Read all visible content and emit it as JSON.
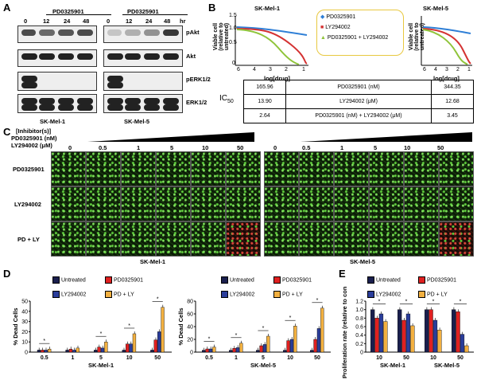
{
  "panels": {
    "A": "A",
    "B": "B",
    "C": "C",
    "D": "D",
    "E": "E"
  },
  "colors": {
    "untreated": "#1a1f4e",
    "pd": "#e02020",
    "ly": "#2a3d9a",
    "pdly": "#f2b040",
    "blue_curve": "#2f7fd6",
    "red_curve": "#d43232",
    "green_curve": "#8fc43a",
    "micro_bg": "#0b1d07"
  },
  "panelA": {
    "drug": "PD0325901",
    "time_unit": "hr",
    "timepoints": [
      "0",
      "12",
      "24",
      "48"
    ],
    "markers": [
      "pAkt",
      "Akt",
      "pERK1/2",
      "ERK1/2"
    ],
    "cells": [
      "SK-Mel-1",
      "SK-Mel-5"
    ]
  },
  "panelB": {
    "ylabel": "Viable cell (relative to untreated)",
    "xlabel": "log[drug]",
    "plot_titles": [
      "SK-Mel-1",
      "SK-Mel-5"
    ],
    "legend": [
      "PD0325901",
      "LY294002",
      "PD0325901 + LY294002"
    ],
    "x_ticks": [
      "6",
      "4",
      "3",
      "2",
      "1"
    ],
    "y_ticks": [
      "1.5",
      "1.0",
      "0.5",
      "0"
    ],
    "ic50_label": "IC",
    "ic50_sub": "50",
    "ic50_rows": [
      {
        "mel1": "165.96",
        "drug": "PD0325901 (nM)",
        "mel5": "344.35"
      },
      {
        "mel1": "13.90",
        "drug": "LY294002 (μM)",
        "mel5": "12.68"
      },
      {
        "mel1": "2.64",
        "drug": "PD0325901 (nM) + LY294002 (μM)",
        "mel5": "3.45"
      }
    ]
  },
  "panelC": {
    "header": "[Inhibitor(s)]",
    "pd_label": "PD0325901 (nM)",
    "ly_label": "LY294002 (μM)",
    "concentrations": [
      "0",
      "0.5",
      "1",
      "5",
      "10",
      "50"
    ],
    "rows": [
      "PD0325901",
      "LY294002",
      "PD + LY"
    ],
    "cells": [
      "SK-Mel-1",
      "SK-Mel-5"
    ]
  },
  "chart_data": [
    {
      "type": "bar",
      "title": "",
      "ylabel": "% Dead Cells",
      "xlabel": "SK-Mel-1",
      "categories": [
        "0.5",
        "1",
        "5",
        "10",
        "50"
      ],
      "ylim": [
        0,
        50
      ],
      "yticks": [
        "0",
        "10",
        "20",
        "30",
        "40",
        "50"
      ],
      "significance": [
        "*",
        "",
        "*",
        "*",
        "*"
      ],
      "series": [
        {
          "name": "Untreated",
          "values": [
            2,
            2,
            2,
            2,
            2
          ]
        },
        {
          "name": "PD0325901",
          "values": [
            2,
            3,
            5,
            8,
            12
          ]
        },
        {
          "name": "LY294002",
          "values": [
            2,
            2,
            4,
            8,
            20
          ]
        },
        {
          "name": "PD + LY",
          "values": [
            3,
            4,
            10,
            18,
            44
          ]
        }
      ]
    },
    {
      "type": "bar",
      "title": "",
      "ylabel": "% Dead Cells",
      "xlabel": "SK-Mel-5",
      "categories": [
        "0.5",
        "1",
        "5",
        "10",
        "50"
      ],
      "ylim": [
        0,
        80
      ],
      "yticks": [
        "0",
        "20",
        "40",
        "60",
        "80"
      ],
      "significance": [
        "*",
        "*",
        "*",
        "*",
        "*"
      ],
      "series": [
        {
          "name": "Untreated",
          "values": [
            3,
            3,
            3,
            3,
            3
          ]
        },
        {
          "name": "PD0325901",
          "values": [
            5,
            6,
            10,
            18,
            20
          ]
        },
        {
          "name": "LY294002",
          "values": [
            5,
            7,
            12,
            20,
            37
          ]
        },
        {
          "name": "PD + LY",
          "values": [
            8,
            14,
            25,
            41,
            69
          ]
        }
      ]
    },
    {
      "type": "bar",
      "title": "",
      "ylabel": "Proliferation rate (relative to control)",
      "groups": [
        "SK-Mel-1",
        "SK-Mel-5"
      ],
      "categories": [
        "10",
        "50",
        "10",
        "50"
      ],
      "ylim": [
        0,
        1.2
      ],
      "yticks": [
        "0",
        "0.2",
        "0.4",
        "0.6",
        "0.8",
        "1.0",
        "1.2"
      ],
      "significance": [
        "*",
        "*",
        "*",
        "*"
      ],
      "series": [
        {
          "name": "Untreated",
          "values": [
            1.0,
            1.0,
            1.0,
            1.0
          ]
        },
        {
          "name": "PD0325901",
          "values": [
            0.8,
            0.75,
            1.0,
            0.95
          ]
        },
        {
          "name": "LY294002",
          "values": [
            0.9,
            0.9,
            0.75,
            0.42
          ]
        },
        {
          "name": "PD + LY",
          "values": [
            0.72,
            0.62,
            0.52,
            0.15
          ]
        }
      ]
    }
  ],
  "legend": [
    "Untreated",
    "PD0325901",
    "LY294002",
    "PD + LY"
  ]
}
